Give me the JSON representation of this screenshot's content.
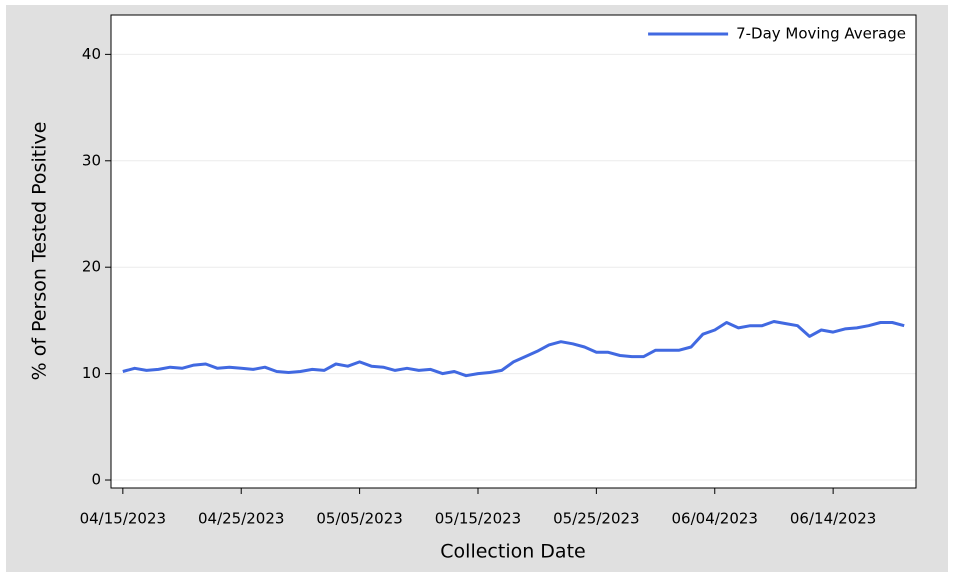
{
  "chart_data": {
    "type": "line",
    "x_label": "Collection Date",
    "y_label": "% of Person Tested Positive",
    "x": [
      "2023-04-15",
      "2023-04-16",
      "2023-04-17",
      "2023-04-18",
      "2023-04-19",
      "2023-04-20",
      "2023-04-21",
      "2023-04-22",
      "2023-04-23",
      "2023-04-24",
      "2023-04-25",
      "2023-04-26",
      "2023-04-27",
      "2023-04-28",
      "2023-04-29",
      "2023-04-30",
      "2023-05-01",
      "2023-05-02",
      "2023-05-03",
      "2023-05-04",
      "2023-05-05",
      "2023-05-06",
      "2023-05-07",
      "2023-05-08",
      "2023-05-09",
      "2023-05-10",
      "2023-05-11",
      "2023-05-12",
      "2023-05-13",
      "2023-05-14",
      "2023-05-15",
      "2023-05-16",
      "2023-05-17",
      "2023-05-18",
      "2023-05-19",
      "2023-05-20",
      "2023-05-21",
      "2023-05-22",
      "2023-05-23",
      "2023-05-24",
      "2023-05-25",
      "2023-05-26",
      "2023-05-27",
      "2023-05-28",
      "2023-05-29",
      "2023-05-30",
      "2023-05-31",
      "2023-06-01",
      "2023-06-02",
      "2023-06-03",
      "2023-06-04",
      "2023-06-05",
      "2023-06-06",
      "2023-06-07",
      "2023-06-08",
      "2023-06-09",
      "2023-06-10",
      "2023-06-11",
      "2023-06-12",
      "2023-06-13",
      "2023-06-14",
      "2023-06-15",
      "2023-06-16",
      "2023-06-17",
      "2023-06-18",
      "2023-06-19",
      "2023-06-20"
    ],
    "series": [
      {
        "name": "7-Day Moving Average",
        "color": "#4169e1",
        "values": [
          10.2,
          10.5,
          10.3,
          10.4,
          10.6,
          10.5,
          10.8,
          10.9,
          10.5,
          10.6,
          10.5,
          10.4,
          10.6,
          10.2,
          10.1,
          10.2,
          10.4,
          10.3,
          10.9,
          10.7,
          11.1,
          10.7,
          10.6,
          10.3,
          10.5,
          10.3,
          10.4,
          10.0,
          10.2,
          9.8,
          10.0,
          10.1,
          10.3,
          11.1,
          11.6,
          12.1,
          12.7,
          13.0,
          12.8,
          12.5,
          12.0,
          12.0,
          11.7,
          11.6,
          11.6,
          12.2,
          12.2,
          12.2,
          12.5,
          13.7,
          14.1,
          14.8,
          14.3,
          14.5,
          14.5,
          14.9,
          14.7,
          14.5,
          13.5,
          14.1,
          13.9,
          14.2,
          14.3,
          14.5,
          14.8,
          14.8,
          14.5
        ]
      }
    ],
    "xlim": [
      "2023-04-14",
      "2023-06-21"
    ],
    "xticks": [
      {
        "value": "2023-04-15",
        "label": "04/15/2023"
      },
      {
        "value": "2023-04-25",
        "label": "04/25/2023"
      },
      {
        "value": "2023-05-05",
        "label": "05/05/2023"
      },
      {
        "value": "2023-05-15",
        "label": "05/15/2023"
      },
      {
        "value": "2023-05-25",
        "label": "05/25/2023"
      },
      {
        "value": "2023-06-04",
        "label": "06/04/2023"
      },
      {
        "value": "2023-06-14",
        "label": "06/14/2023"
      }
    ],
    "ylim": [
      -0.75,
      43.7
    ],
    "yticks": [
      0,
      10,
      20,
      30,
      40
    ],
    "grid": true,
    "legend": "top-right"
  }
}
